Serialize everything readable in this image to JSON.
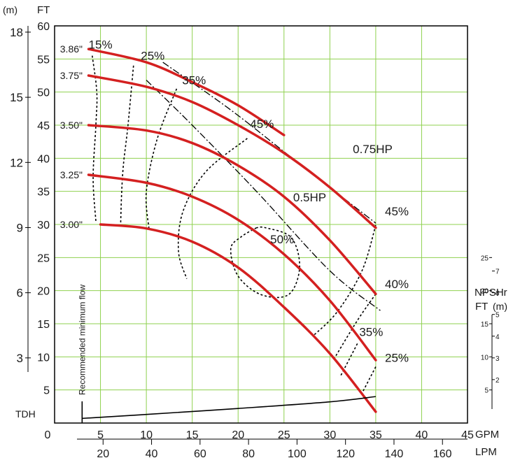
{
  "chart_data": {
    "type": "line",
    "title": "",
    "colors": {
      "head_curves": "#d42020",
      "grid": "#8fd14f",
      "frame": "#000000",
      "dashed": "#000000",
      "text": "#1a1a1a"
    },
    "axes": {
      "x_gpm": {
        "label": "GPM",
        "range": [
          0,
          45
        ],
        "ticks": [
          "0",
          "5",
          "10",
          "15",
          "20",
          "25",
          "30",
          "35",
          "40",
          "45"
        ]
      },
      "x_lpm": {
        "label": "LPM",
        "ticks": [
          "20",
          "40",
          "60",
          "80",
          "100",
          "120",
          "140",
          "160"
        ]
      },
      "y_ft": {
        "label": "FT",
        "range": [
          0,
          60
        ],
        "ticks": [
          "5",
          "10",
          "15",
          "20",
          "25",
          "30",
          "35",
          "40",
          "45",
          "50",
          "55",
          "60"
        ]
      },
      "y_m": {
        "label": "(m)",
        "ticks": [
          "3",
          "6",
          "9",
          "12",
          "15",
          "18"
        ]
      },
      "tdh_label": "TDH",
      "npsh": {
        "title": "NPSHr",
        "ft_label": "FT",
        "m_label": "(m)",
        "ft_ticks": [
          "5",
          "10",
          "15",
          "20",
          "25"
        ],
        "m_ticks": [
          "2",
          "3",
          "4",
          "5",
          "6",
          "7"
        ]
      }
    },
    "impeller_curves": [
      {
        "name": "3.86\"",
        "x": [
          3.7,
          10,
          15,
          20,
          25
        ],
        "y": [
          56.5,
          54.5,
          51.5,
          48,
          43.5
        ]
      },
      {
        "name": "3.75\"",
        "x": [
          3.7,
          10,
          15,
          20,
          25,
          30,
          35
        ],
        "y": [
          52.5,
          50.8,
          48.5,
          45,
          40.8,
          35.6,
          29.5
        ]
      },
      {
        "name": "3.50\"",
        "x": [
          3.7,
          10,
          15,
          20,
          25,
          30,
          35
        ],
        "y": [
          45,
          44.2,
          42.3,
          38.9,
          34.2,
          27.6,
          19.5
        ]
      },
      {
        "name": "3.25\"",
        "x": [
          3.7,
          10,
          15,
          20,
          25,
          30,
          35
        ],
        "y": [
          37.5,
          36.3,
          34.2,
          30.7,
          25.5,
          18.5,
          9.5
        ]
      },
      {
        "name": "3.00\"",
        "x": [
          5,
          10,
          15,
          20,
          25,
          30,
          35
        ],
        "y": [
          30,
          29.4,
          27.4,
          23.5,
          17.5,
          10.5,
          1.7
        ]
      }
    ],
    "efficiency_curves": [
      {
        "name": "15%",
        "x": [
          4.1,
          4.6,
          4.5,
          4.2,
          4.5
        ],
        "y": [
          55.5,
          50,
          45,
          37,
          30.5
        ]
      },
      {
        "name": "25%",
        "x": [
          8.6,
          8,
          7.5,
          7.3,
          7.2
        ],
        "y": [
          54,
          45,
          39,
          34.5,
          30.1
        ]
      },
      {
        "name": "35%",
        "x": [
          13.3,
          11.2,
          10,
          10.3
        ],
        "y": [
          50.5,
          43,
          35,
          29.2
        ]
      },
      {
        "name": "45%",
        "x": [
          21,
          16.5,
          14,
          13.5,
          14.4
        ],
        "y": [
          43,
          38,
          32,
          26,
          21.8
        ]
      },
      {
        "name": "45%",
        "x": [
          35,
          33.5,
          30.8,
          28.2
        ],
        "y": [
          29.9,
          23,
          16.8,
          13.2
        ]
      },
      {
        "name": "40%",
        "x": [
          35,
          33,
          30.5
        ],
        "y": [
          19.5,
          15.5,
          9.8
        ]
      },
      {
        "name": "35%",
        "x": [
          33,
          31.2
        ],
        "y": [
          12,
          7.2
        ]
      },
      {
        "name": "25%",
        "x": [
          35,
          33.5
        ],
        "y": [
          8.5,
          4.5
        ]
      },
      {
        "name": "50%",
        "x": [
          22,
          20.3,
          19.2,
          20,
          22.5,
          25.5,
          26.7,
          25.8,
          23,
          22
        ],
        "y": [
          29.5,
          28.1,
          26.3,
          22.2,
          19.4,
          19.4,
          23.5,
          28,
          29.5,
          29.5
        ]
      }
    ],
    "efficiency_labels": [
      {
        "text": "15%",
        "x": 5,
        "y": 57.2
      },
      {
        "text": "25%",
        "x": 10.7,
        "y": 55.5
      },
      {
        "text": "35%",
        "x": 15.2,
        "y": 51.8
      },
      {
        "text": "45%",
        "x": 22.6,
        "y": 45.2
      },
      {
        "text": "45%",
        "x": 37.3,
        "y": 32
      },
      {
        "text": "50%",
        "x": 24.8,
        "y": 27.8
      },
      {
        "text": "40%",
        "x": 37.3,
        "y": 21
      },
      {
        "text": "35%",
        "x": 34.5,
        "y": 13.8
      },
      {
        "text": "25%",
        "x": 37.3,
        "y": 9.9
      }
    ],
    "power_lines": [
      {
        "name": "0.75HP",
        "x": [
          11.8,
          19,
          25,
          31,
          35
        ],
        "y": [
          54.5,
          47.5,
          41,
          34.5,
          30.2
        ],
        "label_x": 32.5,
        "label_y": 40.8
      },
      {
        "name": "0.5HP",
        "x": [
          10,
          15,
          22,
          30,
          35.5
        ],
        "y": [
          51.8,
          45,
          35,
          23,
          17
        ],
        "label_x": 26,
        "label_y": 33.5
      }
    ],
    "npshr_curve": {
      "x": [
        3,
        10,
        20,
        30,
        35
      ],
      "y": [
        0.7,
        1.3,
        2.2,
        3.2,
        4
      ]
    },
    "min_flow_line": {
      "x": 3,
      "label": "Recommended minimum flow"
    }
  }
}
